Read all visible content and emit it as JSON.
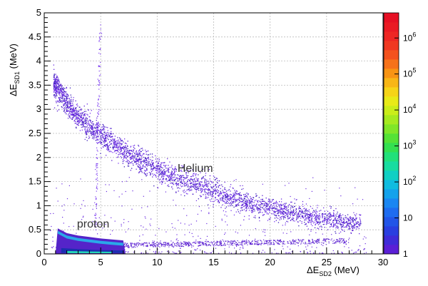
{
  "chart_data": {
    "type": "heatmap",
    "title": "",
    "xlabel": {
      "main": "ΔE",
      "sub": "SD2",
      "unit": " (MeV)"
    },
    "ylabel": {
      "main": "ΔE",
      "sub": "SD1",
      "unit": " (MeV)"
    },
    "xlim": [
      0,
      30
    ],
    "ylim": [
      0,
      5
    ],
    "x_ticks": [
      0,
      5,
      10,
      15,
      20,
      25,
      30
    ],
    "y_ticks": [
      0,
      0.5,
      1,
      1.5,
      2,
      2.5,
      3,
      3.5,
      4,
      4.5,
      5
    ],
    "x_tick_labels": [
      "0",
      "5",
      "10",
      "15",
      "20",
      "25",
      "30"
    ],
    "y_tick_labels": [
      "0",
      "0.5",
      "1",
      "1.5",
      "2",
      "2.5",
      "3",
      "3.5",
      "4",
      "4.5",
      "5"
    ],
    "grid": true,
    "colorbar": {
      "scale": "log",
      "range": [
        1,
        5000000
      ],
      "ticks": [
        {
          "value": 1,
          "base": "1",
          "exp": ""
        },
        {
          "value": 10,
          "base": "10",
          "exp": ""
        },
        {
          "value": 100,
          "base": "10",
          "exp": "2"
        },
        {
          "value": 1000,
          "base": "10",
          "exp": "3"
        },
        {
          "value": 10000,
          "base": "10",
          "exp": "4"
        },
        {
          "value": 100000,
          "base": "10",
          "exp": "5"
        },
        {
          "value": 1000000,
          "base": "10",
          "exp": "6"
        }
      ]
    },
    "annotations": [
      {
        "text": "Helium",
        "x": 11.8,
        "y": 1.7
      },
      {
        "text": "proton",
        "x": 2.9,
        "y": 0.55
      }
    ],
    "bands": [
      {
        "name": "Helium",
        "points": [
          [
            0.8,
            3.55
          ],
          [
            1.5,
            3.3
          ],
          [
            2.5,
            2.95
          ],
          [
            3.5,
            2.75
          ],
          [
            5,
            2.45
          ],
          [
            6.5,
            2.2
          ],
          [
            8,
            2.0
          ],
          [
            10,
            1.75
          ],
          [
            12,
            1.55
          ],
          [
            14,
            1.4
          ],
          [
            16,
            1.22
          ],
          [
            18,
            1.05
          ],
          [
            20,
            0.95
          ],
          [
            22,
            0.85
          ],
          [
            25,
            0.72
          ],
          [
            28,
            0.62
          ]
        ]
      },
      {
        "name": "proton",
        "points": [
          [
            1.2,
            0.45
          ],
          [
            2,
            0.35
          ],
          [
            3,
            0.3
          ],
          [
            4,
            0.27
          ],
          [
            5,
            0.24
          ],
          [
            6,
            0.22
          ],
          [
            7,
            0.2
          ]
        ]
      }
    ]
  }
}
